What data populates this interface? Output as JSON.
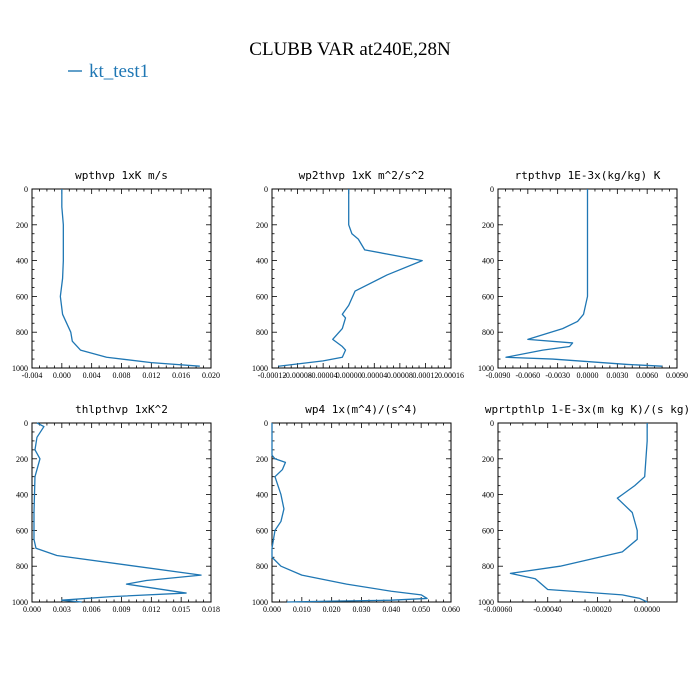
{
  "figure": {
    "title": "CLUBB VAR at240E,28N",
    "legend": {
      "label": "kt_test1",
      "color": "#1f77b4",
      "placement": "top-left"
    }
  },
  "colors": {
    "series": "#1f77b4",
    "axes": "#000000"
  },
  "chart_data": [
    {
      "type": "line",
      "title": "wpthvp  1xK m/s",
      "series": [
        {
          "name": "kt_test1",
          "x": [
            0.0,
            0.0,
            0.0002,
            0.0002,
            0.0002,
            0.0001,
            -0.0002,
            0.0001,
            0.0012,
            0.0014,
            0.0025,
            0.006,
            0.012,
            0.0185
          ],
          "y": [
            0,
            100,
            200,
            300,
            400,
            500,
            600,
            700,
            800,
            850,
            900,
            940,
            970,
            990
          ]
        }
      ],
      "xlim": [
        -0.004,
        0.02
      ],
      "ylim": [
        1000,
        0
      ],
      "xticks": [
        -0.004,
        0.0,
        0.004,
        0.008,
        0.012,
        0.016,
        0.02
      ],
      "xticklabels": [
        "-0.004",
        "0.000",
        "0.004",
        "0.008",
        "0.012",
        "0.016",
        "0.020"
      ],
      "yticks": [
        0,
        200,
        400,
        600,
        800,
        1000
      ],
      "yticklabels": [
        "0",
        "200",
        "400",
        "600",
        "800",
        "1000"
      ]
    },
    {
      "type": "line",
      "title": "wp2thvp  1xK m^2/s^2",
      "series": [
        {
          "name": "kt_test1",
          "x": [
            0.0,
            0.0,
            0.0,
            5e-06,
            1.5e-05,
            2.5e-05,
            0.000115,
            6e-05,
            1e-05,
            0.0,
            -1e-05,
            -5e-06,
            -1e-05,
            -2.5e-05,
            -1e-05,
            -5e-06,
            -1e-05,
            -4e-05,
            -0.00011
          ],
          "y": [
            0,
            100,
            200,
            250,
            280,
            340,
            400,
            480,
            570,
            650,
            700,
            720,
            780,
            840,
            880,
            900,
            940,
            960,
            990
          ]
        }
      ],
      "xlim": [
        -0.00012,
        0.00016
      ],
      "ylim": [
        1000,
        0
      ],
      "xticks": [
        -0.00012,
        -8e-05,
        -4e-05,
        0.0,
        4e-05,
        8e-05,
        0.00012,
        0.00016
      ],
      "xticklabels": [
        "-0.00012",
        "-0.00008",
        "-0.00004",
        "0.00000",
        "0.00004",
        "0.00008",
        "0.00012",
        "0.00016"
      ],
      "yticks": [
        0,
        200,
        400,
        600,
        800,
        1000
      ],
      "yticklabels": [
        "0",
        "200",
        "400",
        "600",
        "800",
        "1000"
      ]
    },
    {
      "type": "line",
      "title": "rtpthvp  1E-3x(kg/kg) K",
      "series": [
        {
          "name": "kt_test1",
          "x": [
            0.0,
            0.0,
            0.0,
            0.0,
            -0.0002,
            -0.0004,
            -0.001,
            -0.0025,
            -0.006,
            -0.0015,
            -0.0018,
            -0.0045,
            -0.0082,
            -0.0035,
            0.004,
            0.0075
          ],
          "y": [
            0,
            200,
            400,
            600,
            650,
            700,
            740,
            780,
            840,
            860,
            880,
            900,
            940,
            950,
            980,
            990
          ]
        }
      ],
      "xlim": [
        -0.009,
        0.009
      ],
      "ylim": [
        1000,
        0
      ],
      "xticks": [
        -0.009,
        -0.006,
        -0.003,
        0.0,
        0.003,
        0.006,
        0.009
      ],
      "xticklabels": [
        "-0.0090",
        "-0.0060",
        "-0.0030",
        "0.0000",
        "0.0030",
        "0.0060",
        "0.0090"
      ],
      "yticks": [
        0,
        200,
        400,
        600,
        800,
        1000
      ],
      "yticklabels": [
        "0",
        "200",
        "400",
        "600",
        "800",
        "1000"
      ]
    },
    {
      "type": "line",
      "title": "thlpthvp  1xK^2",
      "series": [
        {
          "name": "kt_test1",
          "x": [
            0.0005,
            0.0012,
            0.0005,
            0.0003,
            0.0008,
            0.0003,
            0.0002,
            0.0002,
            0.0002,
            0.0004,
            0.0025,
            0.017,
            0.0115,
            0.0095,
            0.0155,
            0.008,
            0.003,
            0.005
          ],
          "y": [
            0,
            20,
            80,
            150,
            200,
            300,
            500,
            600,
            650,
            700,
            740,
            850,
            880,
            900,
            950,
            970,
            990,
            1000
          ]
        }
      ],
      "xlim": [
        0.0,
        0.018
      ],
      "ylim": [
        1000,
        0
      ],
      "xticks": [
        0.0,
        0.003,
        0.006,
        0.009,
        0.012,
        0.015,
        0.018
      ],
      "xticklabels": [
        "0.000",
        "0.003",
        "0.006",
        "0.009",
        "0.012",
        "0.015",
        "0.018"
      ],
      "yticks": [
        0,
        200,
        400,
        600,
        800,
        1000
      ],
      "yticklabels": [
        "0",
        "200",
        "400",
        "600",
        "800",
        "1000"
      ]
    },
    {
      "type": "line",
      "title": "wp4  1x(m^4)/(s^4)",
      "series": [
        {
          "name": "kt_test1",
          "x": [
            0.0,
            0.0,
            0.0,
            0.001,
            0.0045,
            0.0035,
            0.001,
            0.003,
            0.004,
            0.003,
            0.001,
            0.0005,
            0.0,
            0.0,
            0.003,
            0.01,
            0.025,
            0.04,
            0.05,
            0.052,
            0.04,
            0.02,
            0.005
          ],
          "y": [
            0,
            100,
            180,
            200,
            220,
            260,
            300,
            400,
            480,
            550,
            600,
            650,
            700,
            750,
            800,
            850,
            900,
            940,
            960,
            980,
            990,
            995,
            1000
          ]
        }
      ],
      "xlim": [
        0.0,
        0.06
      ],
      "ylim": [
        1000,
        0
      ],
      "xticks": [
        0.0,
        0.01,
        0.02,
        0.03,
        0.04,
        0.05,
        0.06
      ],
      "xticklabels": [
        "0.000",
        "0.010",
        "0.020",
        "0.030",
        "0.040",
        "0.050",
        "0.060"
      ],
      "yticks": [
        0,
        200,
        400,
        600,
        800,
        1000
      ],
      "yticklabels": [
        "0",
        "200",
        "400",
        "600",
        "800",
        "1000"
      ]
    },
    {
      "type": "line",
      "title": "wprtpthlp  1-E-3x(m kg K)/(s kg)",
      "series": [
        {
          "name": "kt_test1",
          "x": [
            0.0,
            0.0,
            -1e-05,
            -5e-05,
            -0.0001,
            -0.00012,
            -6e-05,
            -4e-05,
            -4e-05,
            -0.0001,
            -0.00035,
            -0.00055,
            -0.00045,
            -0.0004,
            -0.0001,
            -3e-05,
            0.0
          ],
          "y": [
            0,
            100,
            300,
            350,
            400,
            420,
            500,
            600,
            650,
            720,
            800,
            840,
            870,
            930,
            960,
            980,
            1000
          ]
        }
      ],
      "xlim": [
        -0.0006,
        0.00012
      ],
      "ylim": [
        1000,
        0
      ],
      "xticks": [
        -0.0006,
        -0.0004,
        -0.0002,
        0.0
      ],
      "xticklabels": [
        "-0.00060",
        "-0.00040",
        "-0.00020",
        "0.00000"
      ],
      "yticks": [
        0,
        200,
        400,
        600,
        800,
        1000
      ],
      "yticklabels": [
        "0",
        "200",
        "400",
        "600",
        "800",
        "1000"
      ]
    }
  ]
}
